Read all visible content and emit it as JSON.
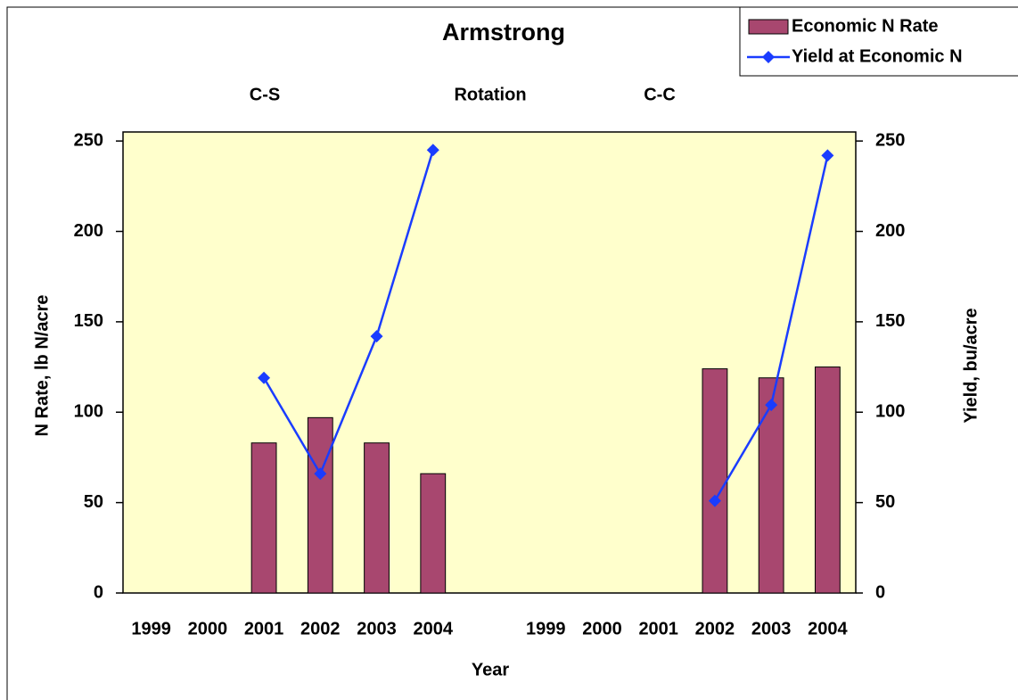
{
  "chart_data": {
    "type": "bar-line",
    "title": "Armstrong",
    "annotations": [
      "C-S",
      "Rotation",
      "C-C"
    ],
    "x_label": "Year",
    "y_label": "N Rate, lb N/acre",
    "y2_label": "Yield, bu/acre",
    "categories": [
      "1999",
      "2000",
      "2001",
      "2002",
      "2003",
      "2004",
      null,
      "1999",
      "2000",
      "2001",
      "2002",
      "2003",
      "2004"
    ],
    "series": [
      {
        "name": "Economic N Rate",
        "type": "bar",
        "color": "#a8476f",
        "values": [
          null,
          null,
          83,
          97,
          83,
          66,
          null,
          null,
          null,
          null,
          124,
          119,
          125
        ]
      },
      {
        "name": "Yield at Economic N",
        "type": "line",
        "axis": "y2",
        "color": "#1a3cff",
        "values": [
          null,
          null,
          119,
          66,
          142,
          245,
          null,
          null,
          null,
          null,
          51,
          104,
          242
        ]
      }
    ],
    "ylim": [
      0,
      255
    ],
    "yticks": [
      0,
      50,
      100,
      150,
      200,
      250
    ],
    "y2lim": [
      0,
      255
    ],
    "y2ticks": [
      0,
      50,
      100,
      150,
      200,
      250
    ],
    "background": "#ffffcc",
    "legend": "top-right"
  }
}
